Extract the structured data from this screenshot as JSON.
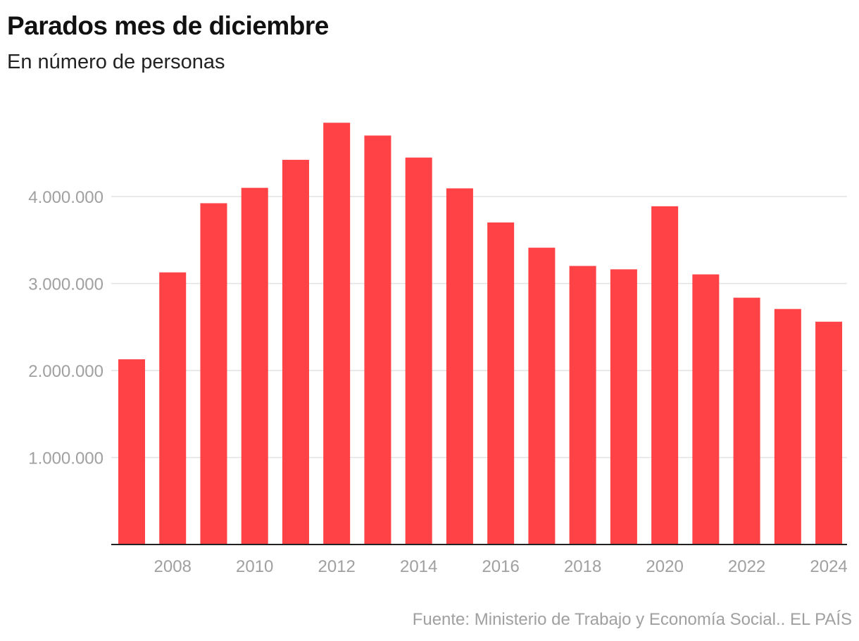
{
  "title": "Parados mes de diciembre",
  "subtitle": "En número de personas",
  "source": "Fuente: Ministerio de Trabajo y Economía Social.. EL PAÍS",
  "chart_data": {
    "type": "bar",
    "title": "Parados mes de diciembre",
    "subtitle": "En número de personas",
    "xlabel": "",
    "ylabel": "",
    "categories": [
      "2007",
      "2008",
      "2009",
      "2010",
      "2011",
      "2012",
      "2013",
      "2014",
      "2015",
      "2016",
      "2017",
      "2018",
      "2019",
      "2020",
      "2021",
      "2022",
      "2023",
      "2024"
    ],
    "values": [
      2129000,
      3128000,
      3923000,
      4100000,
      4422000,
      4848000,
      4701000,
      4448000,
      4094000,
      3702000,
      3412000,
      3202000,
      3163000,
      3888000,
      3105000,
      2837000,
      2707000,
      2561000
    ],
    "x_tick_labels": [
      "2008",
      "2010",
      "2012",
      "2014",
      "2016",
      "2018",
      "2020",
      "2022",
      "2024"
    ],
    "y_ticks": [
      1000000,
      2000000,
      3000000,
      4000000
    ],
    "y_tick_labels": [
      "1.000.000",
      "2.000.000",
      "3.000.000",
      "4.000.000"
    ],
    "ylim": [
      0,
      5000000
    ],
    "grid": true,
    "color": "#ff4245"
  }
}
